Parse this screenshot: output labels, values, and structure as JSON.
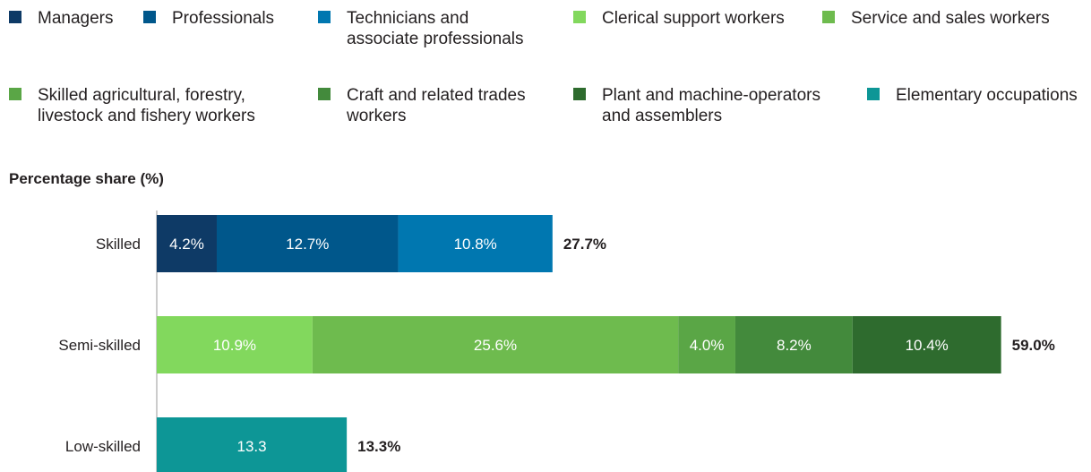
{
  "chart_data": {
    "type": "bar",
    "orientation": "horizontal",
    "stacked": true,
    "ylabel": "Percentage share (%)",
    "categories": [
      "Skilled",
      "Semi-skilled",
      "Low-skilled"
    ],
    "series": [
      {
        "name": "Managers",
        "color": "#0e3a66",
        "values": [
          4.2,
          null,
          null
        ],
        "labels": [
          "4.2%",
          "",
          ""
        ]
      },
      {
        "name": "Professionals",
        "color": "#00578b",
        "values": [
          12.7,
          null,
          null
        ],
        "labels": [
          "12.7%",
          "",
          ""
        ]
      },
      {
        "name": "Technicians and\nassociate professionals",
        "color": "#0077b0",
        "values": [
          10.8,
          null,
          null
        ],
        "labels": [
          "10.8%",
          "",
          ""
        ]
      },
      {
        "name": "Clerical support workers",
        "color": "#82d85d",
        "values": [
          null,
          10.9,
          null
        ],
        "labels": [
          "",
          "10.9%",
          ""
        ]
      },
      {
        "name": "Service and sales workers",
        "color": "#6ebb4e",
        "values": [
          null,
          25.6,
          null
        ],
        "labels": [
          "",
          "25.6%",
          ""
        ]
      },
      {
        "name": "Skilled agricultural, forestry,\nlivestock and fishery workers",
        "color": "#5aa646",
        "values": [
          null,
          4.0,
          null
        ],
        "labels": [
          "",
          "4.0%",
          ""
        ]
      },
      {
        "name": "Craft and related trades\nworkers",
        "color": "#438a3c",
        "values": [
          null,
          8.2,
          null
        ],
        "labels": [
          "",
          "8.2%",
          ""
        ]
      },
      {
        "name": "Plant and machine-operators\nand assemblers",
        "color": "#2e6b2e",
        "values": [
          null,
          10.4,
          null
        ],
        "labels": [
          "",
          "10.4%",
          ""
        ]
      },
      {
        "name": "Elementary occupations",
        "color": "#0d9696",
        "values": [
          null,
          null,
          13.3
        ],
        "labels": [
          "",
          "",
          "13.3"
        ]
      }
    ],
    "totals": [
      "27.7%",
      "59.0%",
      "13.3%"
    ],
    "legend_position": "top"
  }
}
